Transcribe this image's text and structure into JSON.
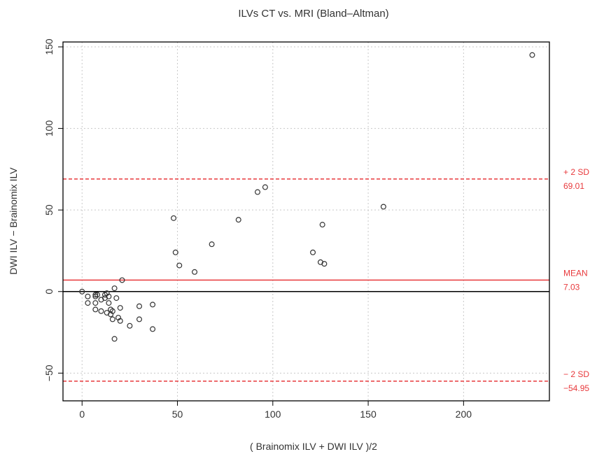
{
  "chart_data": {
    "type": "scatter",
    "title": "ILVs CT vs. MRI  (Bland–Altman)",
    "xlabel": "( Brainomix ILV + DWI ILV )/2",
    "ylabel": "DWI ILV − Brainomix ILV",
    "xlim": [
      -10,
      245
    ],
    "ylim": [
      -67,
      153
    ],
    "x_ticks": [
      0,
      50,
      100,
      150,
      200
    ],
    "y_ticks": [
      -50,
      0,
      50,
      100,
      150
    ],
    "x_tick_labels": [
      "0",
      "50",
      "100",
      "150",
      "200"
    ],
    "y_tick_labels": [
      "−50",
      "0",
      "50",
      "100",
      "150"
    ],
    "grid": true,
    "points": [
      {
        "x": 0,
        "y": 0
      },
      {
        "x": 3,
        "y": -3
      },
      {
        "x": 3,
        "y": -7
      },
      {
        "x": 7,
        "y": -2
      },
      {
        "x": 7,
        "y": -3
      },
      {
        "x": 7,
        "y": -7
      },
      {
        "x": 7,
        "y": -11
      },
      {
        "x": 8,
        "y": -2
      },
      {
        "x": 10,
        "y": -5
      },
      {
        "x": 10,
        "y": -12
      },
      {
        "x": 12,
        "y": -2
      },
      {
        "x": 12,
        "y": -4
      },
      {
        "x": 13,
        "y": -1
      },
      {
        "x": 13,
        "y": -13
      },
      {
        "x": 14,
        "y": -3
      },
      {
        "x": 14,
        "y": -7
      },
      {
        "x": 15,
        "y": -11
      },
      {
        "x": 15,
        "y": -14
      },
      {
        "x": 16,
        "y": -12
      },
      {
        "x": 16,
        "y": -17
      },
      {
        "x": 17,
        "y": 2
      },
      {
        "x": 17,
        "y": -29
      },
      {
        "x": 18,
        "y": -4
      },
      {
        "x": 19,
        "y": -16
      },
      {
        "x": 20,
        "y": -18
      },
      {
        "x": 20,
        "y": -10
      },
      {
        "x": 21,
        "y": 7
      },
      {
        "x": 25,
        "y": -21
      },
      {
        "x": 30,
        "y": -9
      },
      {
        "x": 30,
        "y": -17
      },
      {
        "x": 37,
        "y": -8
      },
      {
        "x": 37,
        "y": -23
      },
      {
        "x": 48,
        "y": 45
      },
      {
        "x": 49,
        "y": 24
      },
      {
        "x": 51,
        "y": 16
      },
      {
        "x": 59,
        "y": 12
      },
      {
        "x": 68,
        "y": 29
      },
      {
        "x": 82,
        "y": 44
      },
      {
        "x": 92,
        "y": 61
      },
      {
        "x": 96,
        "y": 64
      },
      {
        "x": 121,
        "y": 24
      },
      {
        "x": 125,
        "y": 18
      },
      {
        "x": 126,
        "y": 41
      },
      {
        "x": 127,
        "y": 17
      },
      {
        "x": 158,
        "y": 52
      },
      {
        "x": 236,
        "y": 145
      }
    ],
    "reference_lines": [
      {
        "name": "zero",
        "y": 0,
        "color": "#000000",
        "style": "solid"
      },
      {
        "name": "mean",
        "y": 7.03,
        "color": "#e8393c",
        "style": "solid",
        "label": "MEAN",
        "value_label": "7.03"
      },
      {
        "name": "upper-limit",
        "y": 69.01,
        "color": "#e8393c",
        "style": "dashed",
        "label": "+ 2 SD",
        "value_label": "69.01"
      },
      {
        "name": "lower-limit",
        "y": -54.95,
        "color": "#e8393c",
        "style": "dashed",
        "label": "− 2 SD",
        "value_label": "−54.95"
      }
    ],
    "colors": {
      "points": "#333333",
      "limits": "#e8393c",
      "axis": "#000000",
      "grid": "#c8c8c8"
    }
  }
}
